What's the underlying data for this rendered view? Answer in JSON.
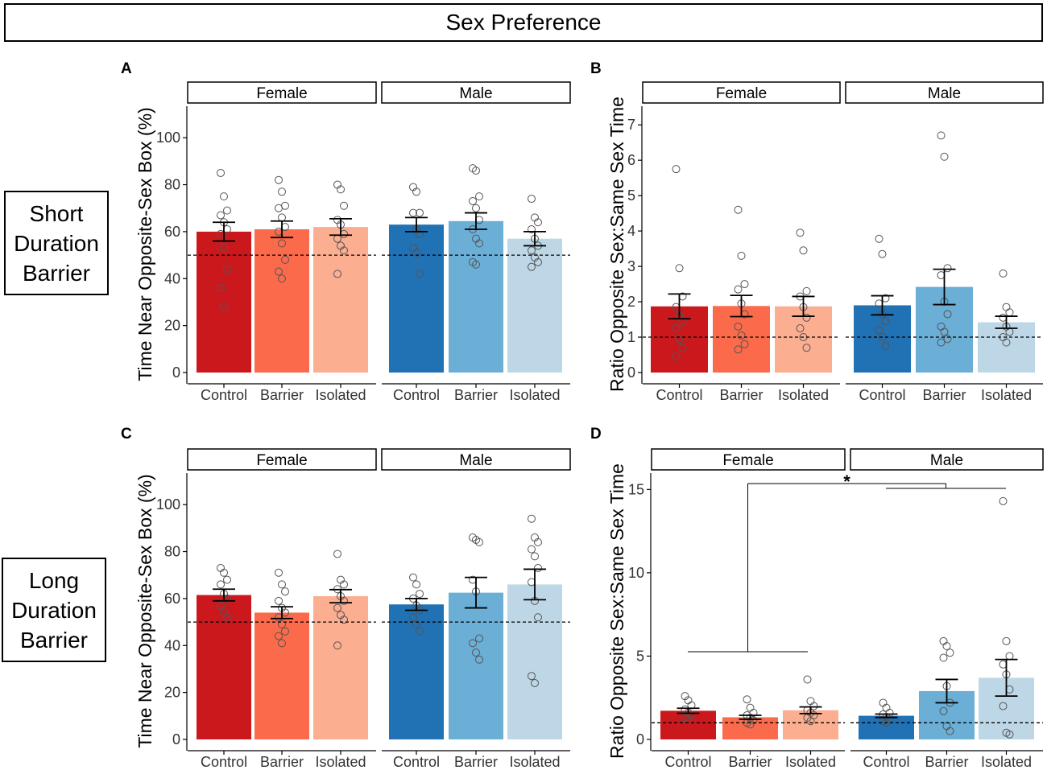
{
  "figure": {
    "title": "Sex Preference",
    "row_labels": [
      [
        "Short",
        "Duration",
        "Barrier"
      ],
      [
        "Long",
        "Duration",
        "Barrier"
      ]
    ],
    "colors": {
      "Female": [
        "#cb181d",
        "#fb6a4a",
        "#fcae91"
      ],
      "Male": [
        "#2171b5",
        "#6baed6",
        "#bdd7e7"
      ],
      "point_stroke": "#555555",
      "axis": "#000000"
    }
  },
  "chart_data": [
    {
      "panel": "A",
      "type": "bar",
      "ylabel": "Time Near Opposite-Sex Box (%)",
      "ylim": [
        0,
        110
      ],
      "yticks": [
        0,
        20,
        40,
        60,
        80,
        100
      ],
      "reference_line": 50,
      "facets": [
        "Female",
        "Male"
      ],
      "categories": [
        "Control",
        "Barrier",
        "Isolated"
      ],
      "series": [
        {
          "name": "Female",
          "values": [
            60,
            61,
            62
          ],
          "sem": [
            4,
            3.5,
            3.5
          ],
          "points": [
            [
              85,
              75,
              69,
              67,
              64,
              61,
              59,
              53,
              44,
              36,
              28
            ],
            [
              82,
              77,
              71,
              70,
              66,
              62,
              60,
              55,
              48,
              43,
              40
            ],
            [
              80,
              78,
              71,
              65,
              63,
              59,
              57,
              54,
              52,
              42
            ]
          ]
        },
        {
          "name": "Male",
          "values": [
            63,
            64.5,
            57
          ],
          "sem": [
            3,
            3.5,
            3
          ],
          "points": [
            [
              79,
              77,
              68,
              68,
              61,
              59,
              53,
              51,
              42
            ],
            [
              87,
              86,
              75,
              73,
              70,
              65,
              61,
              57,
              55,
              47,
              46
            ],
            [
              74,
              66,
              64,
              61,
              57,
              54,
              52,
              49,
              47,
              45
            ]
          ]
        }
      ]
    },
    {
      "panel": "B",
      "type": "bar",
      "ylabel": "Ratio Opposite Sex:Same Sex Time",
      "ylim": [
        0,
        7.3
      ],
      "yticks": [
        0,
        1,
        2,
        3,
        4,
        5,
        6,
        7
      ],
      "reference_line": 1,
      "facets": [
        "Female",
        "Male"
      ],
      "categories": [
        "Control",
        "Barrier",
        "Isolated"
      ],
      "series": [
        {
          "name": "Female",
          "values": [
            1.87,
            1.88,
            1.87
          ],
          "sem": [
            0.35,
            0.3,
            0.28
          ],
          "points": [
            [
              5.75,
              2.95,
              2.15,
              1.85,
              1.6,
              1.45,
              1.25,
              0.95,
              0.7,
              0.45
            ],
            [
              4.6,
              3.3,
              2.5,
              2.35,
              1.95,
              1.65,
              1.3,
              1.05,
              0.8,
              0.65
            ],
            [
              3.95,
              3.45,
              2.3,
              2.15,
              1.85,
              1.55,
              1.25,
              1.0,
              0.7
            ]
          ]
        },
        {
          "name": "Male",
          "values": [
            1.9,
            2.42,
            1.42
          ],
          "sem": [
            0.27,
            0.5,
            0.17
          ],
          "points": [
            [
              3.78,
              3.35,
              2.1,
              1.95,
              1.65,
              1.45,
              1.2,
              1.0,
              0.75
            ],
            [
              6.7,
              6.1,
              2.95,
              2.75,
              2.0,
              1.65,
              1.3,
              1.15,
              0.95,
              0.85
            ],
            [
              2.8,
              1.85,
              1.7,
              1.55,
              1.3,
              1.15,
              1.0,
              0.85
            ]
          ]
        }
      ]
    },
    {
      "panel": "C",
      "type": "bar",
      "ylabel": "Time Near Opposite-Sex Box (%)",
      "ylim": [
        0,
        110
      ],
      "yticks": [
        0,
        20,
        40,
        60,
        80,
        100
      ],
      "reference_line": 50,
      "facets": [
        "Female",
        "Male"
      ],
      "categories": [
        "Control",
        "Barrier",
        "Isolated"
      ],
      "series": [
        {
          "name": "Female",
          "values": [
            61.5,
            54,
            61
          ],
          "sem": [
            2.5,
            2.5,
            2.8
          ],
          "points": [
            [
              73,
              71,
              68,
              66,
              62,
              60,
              57,
              54,
              52
            ],
            [
              71,
              66,
              63,
              59,
              56,
              54,
              52,
              49,
              46,
              44,
              41
            ],
            [
              79,
              68,
              66,
              64,
              61,
              59,
              56,
              53,
              51,
              40
            ]
          ]
        },
        {
          "name": "Male",
          "values": [
            57.5,
            62.5,
            66
          ],
          "sem": [
            2.5,
            6.5,
            6.5
          ],
          "points": [
            [
              69,
              66,
              62,
              60,
              57,
              55,
              52,
              49,
              46
            ],
            [
              86,
              85,
              84,
              68,
              63,
              43,
              41,
              37,
              34
            ],
            [
              94,
              86,
              84,
              81,
              78,
              73,
              67,
              59,
              52,
              27,
              24
            ]
          ]
        }
      ]
    },
    {
      "panel": "D",
      "type": "bar",
      "ylabel": "Ratio Opposite Sex:Same Sex Time",
      "ylim": [
        0,
        15.5
      ],
      "yticks": [
        0,
        5,
        10,
        15
      ],
      "reference_line": 1,
      "facets": [
        "Female",
        "Male"
      ],
      "categories": [
        "Control",
        "Barrier",
        "Isolated"
      ],
      "significance": {
        "label": "*",
        "compare": [
          "Female (all groups)",
          "Male (all groups)"
        ]
      },
      "series": [
        {
          "name": "Female",
          "values": [
            1.72,
            1.33,
            1.75
          ],
          "sem": [
            0.15,
            0.12,
            0.2
          ],
          "points": [
            [
              2.6,
              2.35,
              2.05,
              1.8,
              1.6,
              1.45,
              1.3,
              1.15
            ],
            [
              2.4,
              1.9,
              1.6,
              1.45,
              1.3,
              1.15,
              1.0,
              0.9
            ],
            [
              3.6,
              2.3,
              2.0,
              1.75,
              1.6,
              1.45,
              1.3,
              1.1
            ]
          ]
        },
        {
          "name": "Male",
          "values": [
            1.42,
            2.9,
            3.7
          ],
          "sem": [
            0.1,
            0.7,
            1.1
          ],
          "points": [
            [
              2.2,
              1.9,
              1.6,
              1.5,
              1.35,
              1.2,
              1.1,
              1.0
            ],
            [
              5.9,
              5.6,
              5.2,
              4.9,
              3.2,
              2.2,
              1.7,
              0.8,
              0.5
            ],
            [
              14.3,
              5.9,
              5.0,
              4.5,
              3.9,
              3.0,
              2.0,
              0.4,
              0.3
            ]
          ]
        }
      ]
    }
  ]
}
